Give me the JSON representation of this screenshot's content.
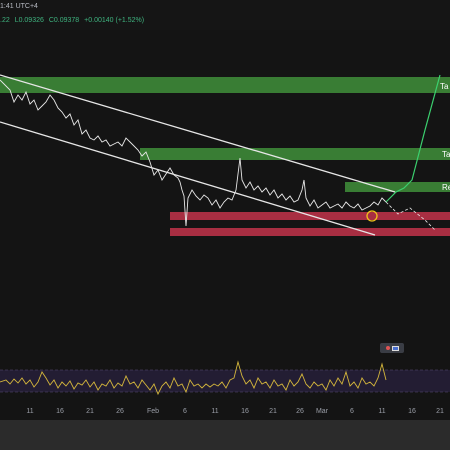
{
  "header": {
    "time": "1:41 UTC+4",
    "ohlc": [
      ".22",
      "L0.09326",
      "C0.09378",
      "+0.00140 (+1.52%)"
    ]
  },
  "zones": {
    "top_label": "Ta",
    "mid_label": "Ta",
    "resistance_label": "Re"
  },
  "x_axis": {
    "ticks": [
      "11",
      "16",
      "21",
      "26",
      "Feb",
      "6",
      "11",
      "16",
      "21",
      "26",
      "Mar",
      "6",
      "11",
      "16",
      "21"
    ]
  },
  "colors": {
    "green_zone": "#3f8f3a",
    "red_zone": "#c2334a",
    "price_line": "#e8e8e8",
    "projection": "#3bd16f",
    "rsi_line": "#d4b63c"
  },
  "icons": {
    "projection_marker": "circle-marker-icon",
    "flag": "flag-icon"
  }
}
